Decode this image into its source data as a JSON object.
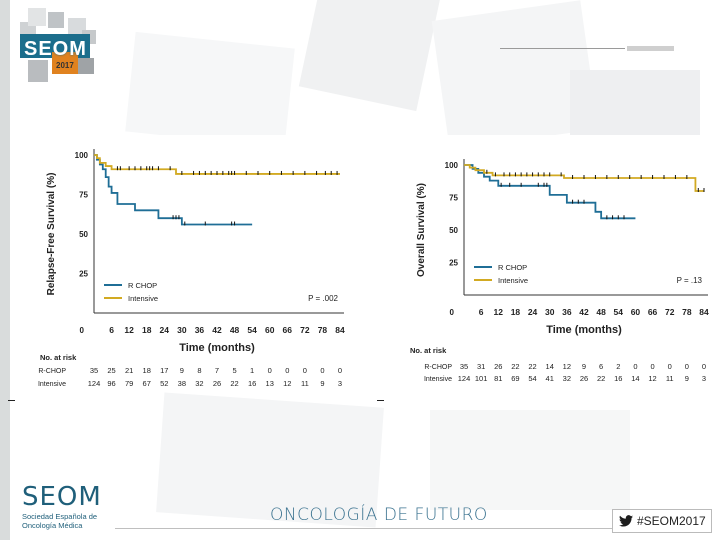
{
  "header": {
    "logo_text": "SEOM",
    "logo_year": "2017"
  },
  "footer": {
    "logo_text": "SEOM",
    "logo_subtitle": "Sociedad Española de Oncología Médica",
    "center_text": "ONCOLOGÍA DE FUTURO",
    "hashtag": "#SEOM2017"
  },
  "colors": {
    "rchop": "#1f6e96",
    "intensive": "#d2aa22",
    "brand": "#1f5f7a"
  },
  "chart_data": [
    {
      "type": "line",
      "title": "",
      "ylabel": "Relapse-Free Survival (%)",
      "xlabel": "Time (months)",
      "ylim": [
        0,
        100
      ],
      "xlim": [
        0,
        84
      ],
      "yticks": [
        "0",
        "25",
        "50",
        "75",
        "100"
      ],
      "xticks": [
        "0",
        "6",
        "12",
        "18",
        "24",
        "30",
        "36",
        "42",
        "48",
        "54",
        "60",
        "66",
        "72",
        "78",
        "84"
      ],
      "p_value": "P = .002",
      "legend": [
        "R CHOP",
        "Intensive"
      ],
      "series": [
        {
          "name": "R CHOP",
          "steps": [
            [
              0,
              100
            ],
            [
              1,
              97
            ],
            [
              2,
              94
            ],
            [
              3,
              91
            ],
            [
              4,
              86
            ],
            [
              5,
              80
            ],
            [
              6,
              76
            ],
            [
              8,
              69
            ],
            [
              14,
              65
            ],
            [
              22,
              60
            ],
            [
              30,
              56
            ],
            [
              54,
              56
            ]
          ]
        },
        {
          "name": "Intensive",
          "steps": [
            [
              0,
              100
            ],
            [
              1,
              98
            ],
            [
              2,
              95
            ],
            [
              4,
              93
            ],
            [
              6,
              91
            ],
            [
              28,
              88
            ],
            [
              84,
              88
            ]
          ]
        }
      ],
      "censor_marks": {
        "R CHOP": [
          27,
          28,
          29,
          31,
          38,
          47,
          48
        ],
        "Intensive": [
          8,
          9,
          12,
          14,
          16,
          18,
          19,
          20,
          22,
          26,
          30,
          34,
          36,
          38,
          40,
          42,
          44,
          46,
          47,
          48,
          52,
          56,
          60,
          64,
          68,
          72,
          76,
          79,
          81,
          83
        ]
      },
      "at_risk": {
        "label": "No. at risk",
        "rows": [
          {
            "name": "R-CHOP",
            "values": [
              "35",
              "25",
              "21",
              "18",
              "17",
              "9",
              "8",
              "7",
              "5",
              "1",
              "0",
              "0",
              "0",
              "0",
              "0"
            ]
          },
          {
            "name": "Intensive",
            "values": [
              "124",
              "96",
              "79",
              "67",
              "52",
              "38",
              "32",
              "26",
              "22",
              "16",
              "13",
              "12",
              "11",
              "9",
              "3"
            ]
          }
        ]
      }
    },
    {
      "type": "line",
      "title": "",
      "ylabel": "Overall Survival (%)",
      "xlabel": "Time (months)",
      "ylim": [
        0,
        100
      ],
      "xlim": [
        0,
        84
      ],
      "yticks": [
        "0",
        "25",
        "50",
        "75",
        "100"
      ],
      "xticks": [
        "0",
        "6",
        "12",
        "18",
        "24",
        "30",
        "36",
        "42",
        "48",
        "54",
        "60",
        "66",
        "72",
        "78",
        "84"
      ],
      "p_value": "P = .13",
      "legend": [
        "R CHOP",
        "Intensive"
      ],
      "series": [
        {
          "name": "R CHOP",
          "steps": [
            [
              0,
              100
            ],
            [
              3,
              97
            ],
            [
              5,
              94
            ],
            [
              7,
              91
            ],
            [
              9,
              88
            ],
            [
              12,
              84
            ],
            [
              30,
              77
            ],
            [
              36,
              71
            ],
            [
              46,
              64
            ],
            [
              48,
              59
            ],
            [
              60,
              59
            ]
          ]
        },
        {
          "name": "Intensive",
          "steps": [
            [
              0,
              100
            ],
            [
              2,
              98
            ],
            [
              4,
              96
            ],
            [
              7,
              94
            ],
            [
              10,
              92
            ],
            [
              35,
              90
            ],
            [
              80,
              90
            ],
            [
              81,
              80
            ],
            [
              84,
              80
            ]
          ]
        }
      ],
      "censor_marks": {
        "R CHOP": [
          13,
          16,
          20,
          26,
          28,
          29,
          38,
          40,
          42,
          50,
          52,
          54,
          56
        ],
        "Intensive": [
          8,
          11,
          14,
          16,
          18,
          20,
          22,
          24,
          26,
          28,
          30,
          34,
          38,
          42,
          46,
          50,
          54,
          58,
          62,
          66,
          70,
          74,
          78,
          82,
          84
        ]
      },
      "at_risk": {
        "label": "No. at risk",
        "rows": [
          {
            "name": "R-CHOP",
            "values": [
              "35",
              "31",
              "26",
              "22",
              "22",
              "14",
              "12",
              "9",
              "6",
              "2",
              "0",
              "0",
              "0",
              "0",
              "0"
            ]
          },
          {
            "name": "Intensive",
            "values": [
              "124",
              "101",
              "81",
              "69",
              "54",
              "41",
              "32",
              "26",
              "22",
              "16",
              "14",
              "12",
              "11",
              "9",
              "3"
            ]
          }
        ]
      }
    }
  ]
}
